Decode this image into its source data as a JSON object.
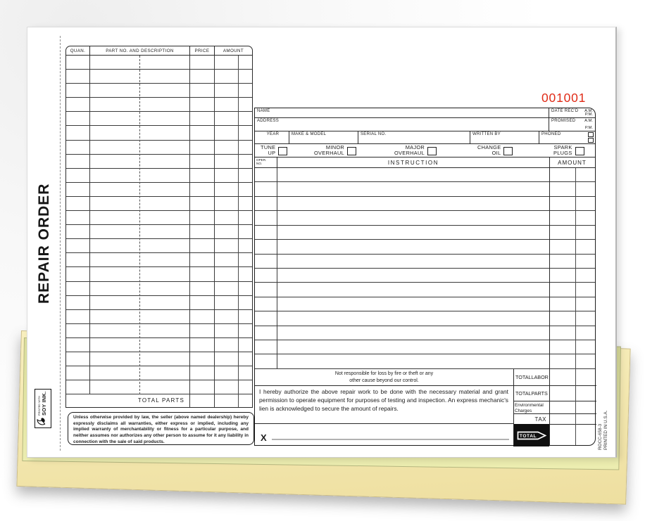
{
  "stub": {
    "title": "REPAIR ORDER",
    "soy_ink_line1": "PRINTED WITH",
    "soy_ink_line2": "SOY INK."
  },
  "form_number": "001001",
  "colors": {
    "number_red": "#e02b17",
    "canary_sheet": "#e4e6a4",
    "cream_sheet": "#f5e9b4"
  },
  "parts_table": {
    "col_quan": "QUAN.",
    "col_desc": "PART NO. AND DESCRIPTION",
    "col_price": "PRICE",
    "col_amount": "AMOUNT",
    "blank_row_count": 24,
    "total_label": "TOTAL PARTS"
  },
  "customer": {
    "name_label": "NAME",
    "address_label": "ADDRESS",
    "date_recd_label": "DATE REC'D",
    "promised_label": "PROMISED",
    "am": "A.M.",
    "pm": "P.M.",
    "year_label": "YEAR",
    "make_model_label": "MAKE & MODEL",
    "serial_label": "SERIAL NO.",
    "written_by_label": "WRITTEN BY",
    "phoned_label": "PHONED"
  },
  "services": [
    {
      "line1": "TUNE",
      "line2": "UP"
    },
    {
      "line1": "MINOR",
      "line2": "OVERHAUL"
    },
    {
      "line1": "MAJOR",
      "line2": "OVERHAUL"
    },
    {
      "line1": "CHANGE",
      "line2": "OIL"
    },
    {
      "line1": "SPARK",
      "line2": "PLUGS"
    }
  ],
  "instructions_table": {
    "col_oper_line1": "OPER.",
    "col_oper_line2": "NO.",
    "col_instruction": "INSTRUCTION",
    "col_amount": "AMOUNT",
    "blank_row_count": 14
  },
  "notices": {
    "fire_line1": "Not responsible for loss by fire or theft or any",
    "fire_line2": "other cause beyond our control.",
    "authorization": "I hereby authorize the above repair work to be done with the necessary material and grant permission to operate equipment for purposes of testing and inspection.  An express mechanic's lien is acknowledged to secure the amount of repairs.",
    "signature_prefix": "X",
    "disclaimer": "Unless otherwise provided by law, the seller (above named dealership) hereby expressly disclaims all warranties, either express or implied, including any implied warranty of merchantability or fitness for a particular purpose, and neither assumes nor authorizes any other person to assume for it any liability in connection with the sale of said products."
  },
  "totals": {
    "labor_word1": "TOTAL",
    "labor_word2": "LABOR",
    "parts_word1": "TOTAL",
    "parts_word2": "PARTS",
    "env_line1": "Environmental",
    "env_line2": "Charges",
    "tax": "TAX",
    "total": "TOTAL"
  },
  "footer": {
    "form_code": "ROCC-658-3",
    "printed_note": "PRINTED IN U.S.A."
  }
}
